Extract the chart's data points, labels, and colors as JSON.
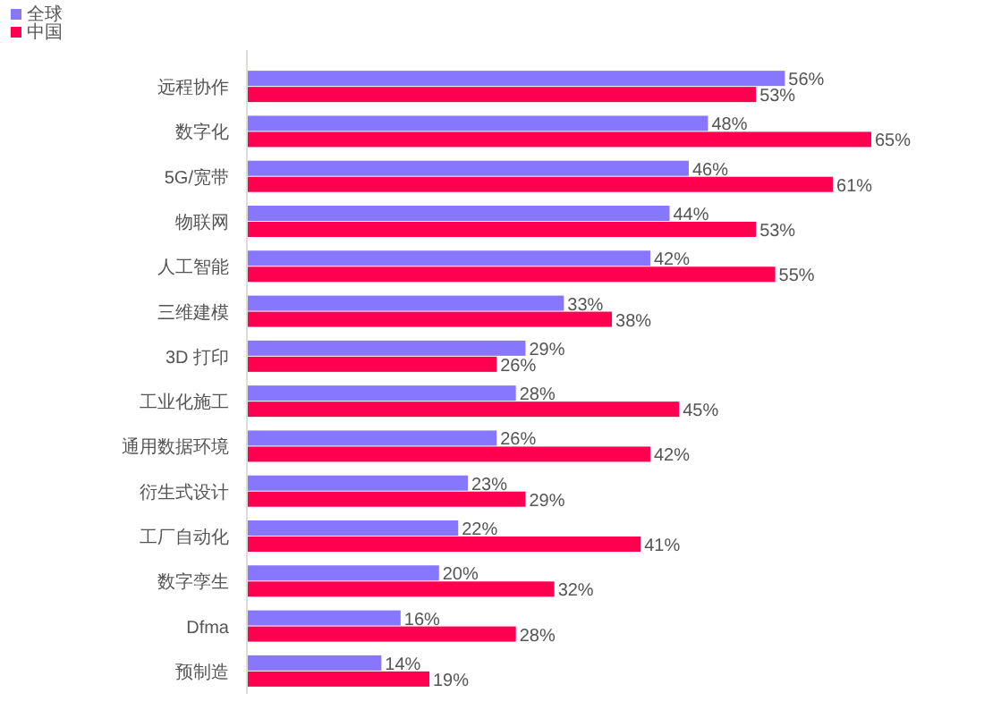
{
  "chart_data": {
    "type": "bar",
    "orientation": "horizontal",
    "legend": "top left",
    "categories": [
      "远程协作",
      "数字化",
      "5G/宽带",
      "物联网",
      "人工智能",
      "三维建模",
      "3D 打印",
      "工业化施工",
      "通用数据环境",
      "衍生式设计",
      "工厂自动化",
      "数字孪生",
      "Dfma",
      "预制造"
    ],
    "series": [
      {
        "name": "全球",
        "color": "#8677fe",
        "values": [
          56,
          48,
          46,
          44,
          42,
          33,
          29,
          28,
          26,
          23,
          22,
          20,
          16,
          14
        ],
        "value_labels": [
          "56%",
          "48%",
          "46%",
          "44%",
          "42%",
          "33%",
          "29%",
          "28%",
          "26%",
          "23%",
          "22%",
          "20%",
          "16%",
          "14%"
        ]
      },
      {
        "name": "中国",
        "color": "#ff0050",
        "values": [
          53,
          65,
          61,
          53,
          55,
          38,
          26,
          45,
          42,
          29,
          41,
          32,
          28,
          19
        ],
        "value_labels": [
          "53%",
          "65%",
          "61%",
          "53%",
          "55%",
          "38%",
          "26%",
          "45%",
          "42%",
          "29%",
          "41%",
          "32%",
          "28%",
          "19%"
        ]
      }
    ]
  }
}
